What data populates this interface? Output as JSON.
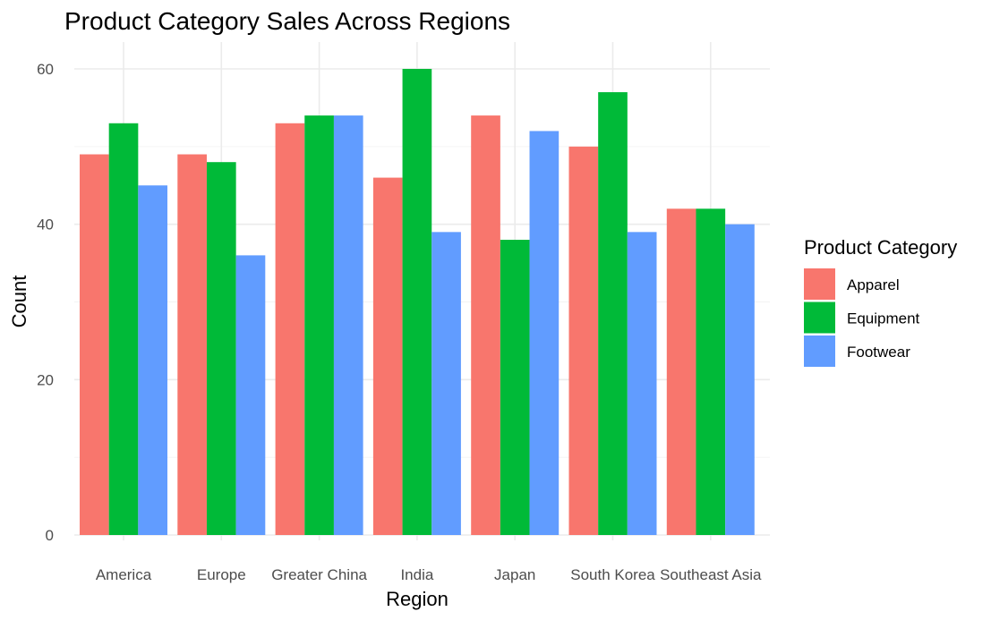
{
  "chart_data": {
    "type": "bar",
    "title": "Product Category Sales Across Regions",
    "xlabel": "Region",
    "ylabel": "Count",
    "categories": [
      "America",
      "Europe",
      "Greater China",
      "India",
      "Japan",
      "South Korea",
      "Southeast Asia"
    ],
    "series": [
      {
        "name": "Apparel",
        "color": "#F8766D",
        "values": [
          49,
          49,
          53,
          46,
          54,
          50,
          42
        ]
      },
      {
        "name": "Equipment",
        "color": "#00BA38",
        "values": [
          53,
          48,
          54,
          60,
          38,
          57,
          42
        ]
      },
      {
        "name": "Footwear",
        "color": "#619CFF",
        "values": [
          45,
          36,
          54,
          39,
          52,
          39,
          40
        ]
      }
    ],
    "ylim": [
      0,
      60
    ],
    "yticks": [
      0,
      20,
      40,
      60
    ],
    "grid": true,
    "legend": {
      "title": "Product Category",
      "position": "right"
    }
  }
}
